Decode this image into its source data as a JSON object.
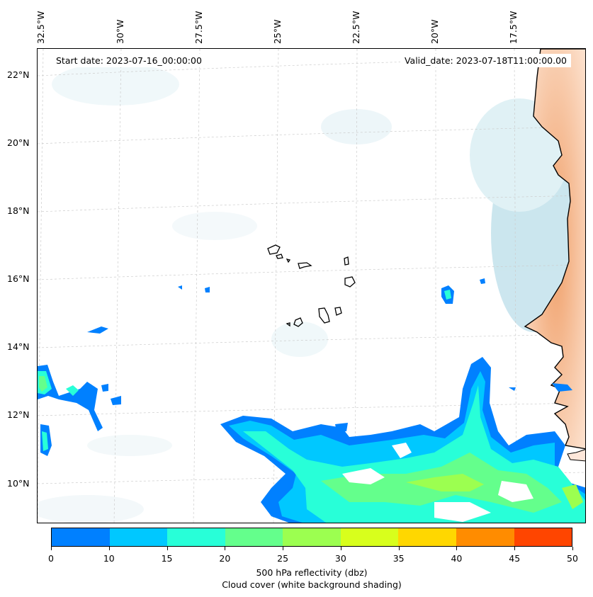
{
  "map": {
    "start_date": "Start date: 2023-07-16_00:00:00",
    "valid_date": "Valid_date: 2023-07-18T11:00:00.00",
    "lon_labels": [
      "32.5°W",
      "30°W",
      "27.5°W",
      "25°W",
      "22.5°W",
      "20°W",
      "17.5°W"
    ],
    "lat_labels": [
      "22°N",
      "20°N",
      "18°N",
      "16°N",
      "14°N",
      "12°N",
      "10°N"
    ],
    "extent": {
      "lon_min": -32.5,
      "lon_max": -15.5,
      "lat_min": 8.9,
      "lat_max": 22.8
    },
    "gridlines": true,
    "land_color": "#f4a261",
    "cloud_color": "#add8e6"
  },
  "colorbar": {
    "ticks": [
      "0",
      "10",
      "15",
      "20",
      "25",
      "30",
      "35",
      "40",
      "45",
      "50"
    ],
    "colors": [
      "#0080ff",
      "#00c8ff",
      "#28ffd8",
      "#64ff8c",
      "#9cff50",
      "#d8ff1c",
      "#ffd700",
      "#ff8c00",
      "#ff4500"
    ],
    "label": "500 hPa reflectivity (dbz)",
    "sublabel": "Cloud cover (white background shading)"
  }
}
